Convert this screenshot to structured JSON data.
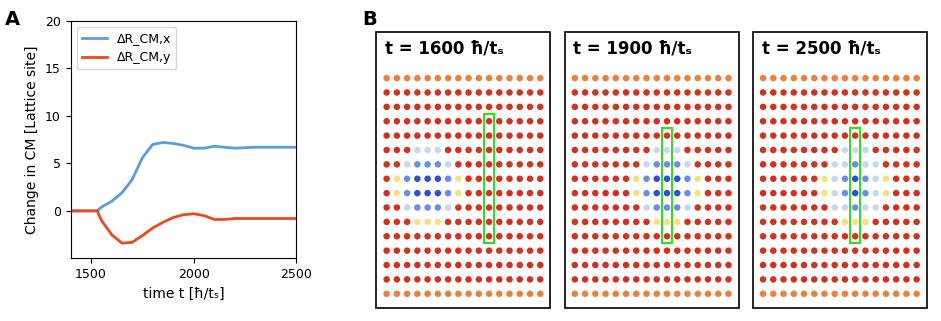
{
  "chart_data": [
    {
      "type": "line",
      "panel_label": "A",
      "x_label": "time t [ħ/tₛ]",
      "y_label": "Change in CM [Lattice site]",
      "x": [
        1400,
        1450,
        1500,
        1530,
        1550,
        1600,
        1650,
        1700,
        1750,
        1800,
        1850,
        1900,
        1950,
        2000,
        2050,
        2100,
        2150,
        2200,
        2300,
        2400,
        2500
      ],
      "series": [
        {
          "name": "ΔR_CM,x",
          "color": "#5b9ae6",
          "values": [
            0,
            0,
            0,
            0,
            0.4,
            1.0,
            1.9,
            3.3,
            5.6,
            7.0,
            7.2,
            7.1,
            6.9,
            6.6,
            6.6,
            6.8,
            6.7,
            6.6,
            6.7,
            6.7,
            6.7
          ]
        },
        {
          "name": "ΔR_CM,y",
          "color": "#ec4a1c",
          "values": [
            0,
            0,
            0,
            0,
            -1.0,
            -2.5,
            -3.4,
            -3.3,
            -2.6,
            -1.8,
            -1.2,
            -0.7,
            -0.4,
            -0.3,
            -0.5,
            -0.9,
            -0.9,
            -0.8,
            -0.8,
            -0.8,
            -0.8
          ]
        }
      ],
      "xlim": [
        1400,
        2500
      ],
      "xticks": [
        1500,
        2000,
        2500
      ],
      "ylim": [
        -5,
        20
      ],
      "yticks": [
        0,
        5,
        10,
        15,
        20
      ],
      "legend": "upper left"
    },
    {
      "type": "lattice",
      "panel_label": "B",
      "grid_size": [
        16,
        16
      ],
      "colors": [
        "#d7301f",
        "#f07f3c",
        "#f5e37a",
        "#c6d8f0",
        "#6a8ee8",
        "#2b4fd8"
      ],
      "background": 0,
      "border": 1,
      "snapshots": [
        {
          "title": "t = 1600 ħ/tₛ",
          "cells": [
            [
              3,
              5,
              3
            ],
            [
              4,
              5,
              3
            ],
            [
              5,
              5,
              3
            ],
            [
              2,
              6,
              3
            ],
            [
              3,
              6,
              4
            ],
            [
              4,
              6,
              4
            ],
            [
              5,
              6,
              4
            ],
            [
              6,
              6,
              3
            ],
            [
              1,
              7,
              2
            ],
            [
              2,
              7,
              4
            ],
            [
              3,
              7,
              5
            ],
            [
              4,
              7,
              5
            ],
            [
              5,
              7,
              5
            ],
            [
              6,
              7,
              4
            ],
            [
              7,
              7,
              2
            ],
            [
              1,
              8,
              2
            ],
            [
              2,
              8,
              4
            ],
            [
              3,
              8,
              5
            ],
            [
              4,
              8,
              5
            ],
            [
              5,
              8,
              5
            ],
            [
              6,
              8,
              4
            ],
            [
              7,
              8,
              2
            ],
            [
              2,
              9,
              3
            ],
            [
              3,
              9,
              4
            ],
            [
              4,
              9,
              4
            ],
            [
              5,
              9,
              4
            ],
            [
              6,
              9,
              3
            ],
            [
              3,
              10,
              2
            ],
            [
              4,
              10,
              2
            ],
            [
              5,
              10,
              2
            ]
          ],
          "highlight": {
            "col": 10,
            "rows": [
              3,
              11
            ]
          }
        },
        {
          "title": "t = 1900 ħ/tₛ",
          "cells": [
            [
              8,
              5,
              3
            ],
            [
              9,
              5,
              3
            ],
            [
              10,
              5,
              3
            ],
            [
              7,
              6,
              3
            ],
            [
              8,
              6,
              4
            ],
            [
              9,
              6,
              4
            ],
            [
              10,
              6,
              4
            ],
            [
              11,
              6,
              3
            ],
            [
              6,
              7,
              2
            ],
            [
              7,
              7,
              4
            ],
            [
              8,
              7,
              5
            ],
            [
              9,
              7,
              5
            ],
            [
              10,
              7,
              5
            ],
            [
              11,
              7,
              4
            ],
            [
              12,
              7,
              2
            ],
            [
              6,
              8,
              2
            ],
            [
              7,
              8,
              4
            ],
            [
              8,
              8,
              5
            ],
            [
              9,
              8,
              5
            ],
            [
              10,
              8,
              5
            ],
            [
              11,
              8,
              4
            ],
            [
              12,
              8,
              2
            ],
            [
              7,
              9,
              3
            ],
            [
              8,
              9,
              4
            ],
            [
              9,
              9,
              4
            ],
            [
              10,
              9,
              4
            ],
            [
              11,
              9,
              3
            ],
            [
              8,
              10,
              2
            ],
            [
              9,
              10,
              2
            ],
            [
              10,
              10,
              2
            ]
          ],
          "highlight": {
            "col": 9,
            "rows": [
              4,
              11
            ]
          }
        },
        {
          "title": "t = 2500 ħ/tₛ",
          "cells": [
            [
              8,
              5,
              3
            ],
            [
              9,
              5,
              3
            ],
            [
              10,
              5,
              3
            ],
            [
              7,
              6,
              3
            ],
            [
              8,
              6,
              3
            ],
            [
              9,
              6,
              4
            ],
            [
              10,
              6,
              3
            ],
            [
              11,
              6,
              3
            ],
            [
              6,
              7,
              2
            ],
            [
              7,
              7,
              3
            ],
            [
              8,
              7,
              4
            ],
            [
              9,
              7,
              5
            ],
            [
              10,
              7,
              4
            ],
            [
              11,
              7,
              3
            ],
            [
              12,
              7,
              2
            ],
            [
              6,
              8,
              2
            ],
            [
              7,
              8,
              3
            ],
            [
              8,
              8,
              4
            ],
            [
              9,
              8,
              5
            ],
            [
              10,
              8,
              4
            ],
            [
              11,
              8,
              3
            ],
            [
              12,
              8,
              2
            ],
            [
              7,
              9,
              3
            ],
            [
              8,
              9,
              3
            ],
            [
              9,
              9,
              4
            ],
            [
              10,
              9,
              3
            ],
            [
              11,
              9,
              3
            ],
            [
              8,
              10,
              2
            ],
            [
              9,
              10,
              2
            ],
            [
              10,
              10,
              2
            ]
          ],
          "highlight": {
            "col": 9,
            "rows": [
              4,
              11
            ]
          }
        }
      ]
    }
  ]
}
